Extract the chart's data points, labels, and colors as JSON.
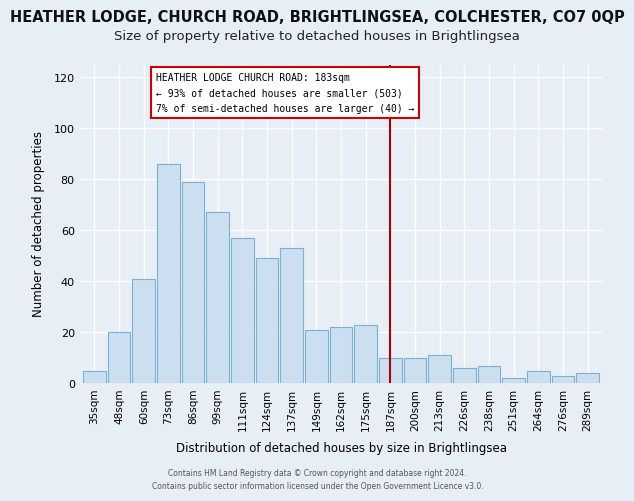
{
  "title": "HEATHER LODGE, CHURCH ROAD, BRIGHTLINGSEA, COLCHESTER, CO7 0QP",
  "subtitle": "Size of property relative to detached houses in Brightlingsea",
  "xlabel": "Distribution of detached houses by size in Brightlingsea",
  "ylabel": "Number of detached properties",
  "bar_labels": [
    "35sqm",
    "48sqm",
    "60sqm",
    "73sqm",
    "86sqm",
    "99sqm",
    "111sqm",
    "124sqm",
    "137sqm",
    "149sqm",
    "162sqm",
    "175sqm",
    "187sqm",
    "200sqm",
    "213sqm",
    "226sqm",
    "238sqm",
    "251sqm",
    "264sqm",
    "276sqm",
    "289sqm"
  ],
  "bar_values": [
    5,
    20,
    41,
    86,
    79,
    67,
    57,
    49,
    53,
    21,
    22,
    23,
    10,
    10,
    11,
    6,
    7,
    2,
    5,
    3,
    4
  ],
  "bar_color": "#ccdff0",
  "bar_edge_color": "#7ab0d4",
  "reference_line_x_label": "187sqm",
  "reference_line_color": "#aa0000",
  "annotation_title": "HEATHER LODGE CHURCH ROAD: 183sqm",
  "annotation_line1": "← 93% of detached houses are smaller (503)",
  "annotation_line2": "7% of semi-detached houses are larger (40) →",
  "ylim": [
    0,
    125
  ],
  "yticks": [
    0,
    20,
    40,
    60,
    80,
    100,
    120
  ],
  "footer_line1": "Contains HM Land Registry data © Crown copyright and database right 2024.",
  "footer_line2": "Contains public sector information licensed under the Open Government Licence v3.0.",
  "background_color": "#e8eef5",
  "grid_color": "#ffffff",
  "title_fontsize": 10.5,
  "subtitle_fontsize": 9.5
}
